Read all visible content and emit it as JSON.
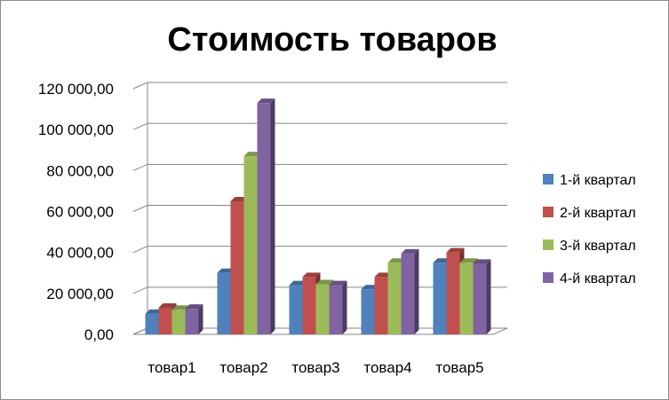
{
  "chart_data": {
    "type": "bar",
    "title": "Стоимость товаров",
    "xlabel": "",
    "ylabel": "",
    "ylim": [
      0,
      120000
    ],
    "y_ticks": [
      "0,00",
      "20 000,00",
      "40 000,00",
      "60 000,00",
      "80 000,00",
      "100 000,00",
      "120 000,00"
    ],
    "grid": true,
    "legend_position": "right",
    "categories": [
      "товар1",
      "товар2",
      "товар3",
      "товар4",
      "товар5"
    ],
    "series": [
      {
        "name": "1-й квартал",
        "color": "#4F81BD",
        "values": [
          10000,
          30000,
          24000,
          22000,
          35000
        ]
      },
      {
        "name": "2-й квартал",
        "color": "#C0504D",
        "values": [
          13000,
          65000,
          28000,
          28000,
          40000
        ]
      },
      {
        "name": "3-й квартал",
        "color": "#9BBB59",
        "values": [
          12000,
          87000,
          24500,
          35000,
          35000
        ]
      },
      {
        "name": "4-й квартал",
        "color": "#8064A2",
        "values": [
          12500,
          113000,
          24000,
          39500,
          34500
        ]
      }
    ]
  }
}
